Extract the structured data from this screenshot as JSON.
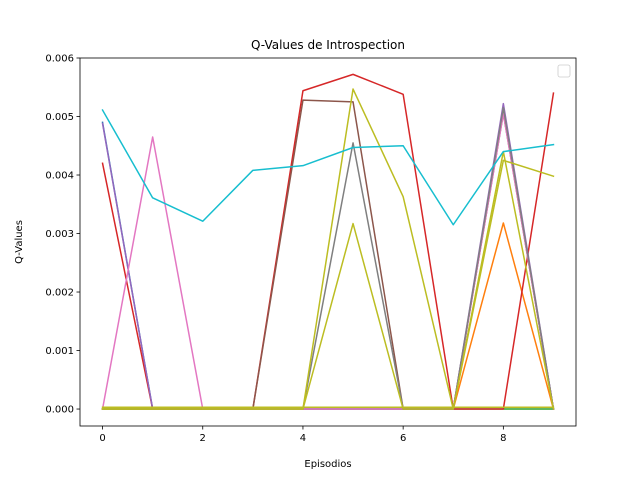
{
  "chart_data": {
    "type": "line",
    "title": "Q-Values de Introspection",
    "xlabel": "Episodios",
    "ylabel": "Q-Values",
    "xlim": [
      -0.45,
      9.45
    ],
    "ylim": [
      -0.00029,
      0.006
    ],
    "x_ticks": [
      0,
      2,
      4,
      6,
      8
    ],
    "y_ticks": [
      0.0,
      0.001,
      0.002,
      0.003,
      0.004,
      0.005,
      0.006
    ],
    "y_tick_labels": [
      "0.000",
      "0.001",
      "0.002",
      "0.003",
      "0.004",
      "0.005",
      "0.006"
    ],
    "x_tick_labels": [
      "0",
      "2",
      "4",
      "6",
      "8"
    ],
    "grid": false,
    "legend": {
      "placement": "top-right",
      "entries": []
    },
    "x": [
      0,
      1,
      2,
      3,
      4,
      5,
      6,
      7,
      8,
      9
    ],
    "series": [
      {
        "color": "#1f77b4",
        "values": [
          0.0049,
          0,
          0,
          0,
          0,
          0,
          0,
          0,
          0.0051,
          0
        ]
      },
      {
        "color": "#ff7f0e",
        "values": [
          0,
          0,
          0,
          0,
          0,
          0,
          0,
          0,
          0.00318,
          0
        ]
      },
      {
        "color": "#2ca02c",
        "values": [
          0,
          0,
          0,
          0,
          0,
          0,
          0,
          0,
          0,
          0
        ]
      },
      {
        "color": "#d62728",
        "values": [
          0.0042,
          0,
          0,
          0,
          0.00544,
          0.00572,
          0.00538,
          0,
          0,
          0.0054
        ]
      },
      {
        "color": "#9467bd",
        "values": [
          0.00488,
          0,
          0,
          0,
          0,
          0,
          0,
          0,
          0.00522,
          0
        ]
      },
      {
        "color": "#8c564b",
        "values": [
          0,
          0,
          0,
          0,
          0.00528,
          0.00525,
          0,
          0,
          0.00505,
          0
        ]
      },
      {
        "color": "#e377c2",
        "values": [
          0,
          0.00465,
          0,
          0,
          0,
          0,
          0,
          0,
          0.00505,
          0
        ]
      },
      {
        "color": "#7f7f7f",
        "values": [
          0,
          0,
          0,
          0,
          0,
          0.00455,
          0,
          0,
          0.00515,
          0
        ]
      },
      {
        "color": "#bcbd22",
        "values": [
          0,
          0,
          0,
          0,
          0,
          0.00547,
          0.00363,
          0,
          0.00425,
          0.00398
        ]
      },
      {
        "color": "#bcbd22",
        "values": [
          0,
          0,
          0,
          0,
          0,
          0.00317,
          0,
          0,
          0.0044,
          0
        ]
      },
      {
        "color": "#17becf",
        "values": [
          0.00511,
          0.00361,
          0.00321,
          0.00408,
          0.00416,
          0.00447,
          0.0045,
          0.00315,
          0.0044,
          0.00452
        ]
      },
      {
        "color": "#bcbd22",
        "values": [
          3e-05,
          3e-05,
          3e-05,
          3e-05,
          3e-05,
          3e-05,
          3e-05,
          3e-05,
          3e-05,
          3e-05
        ]
      }
    ]
  }
}
